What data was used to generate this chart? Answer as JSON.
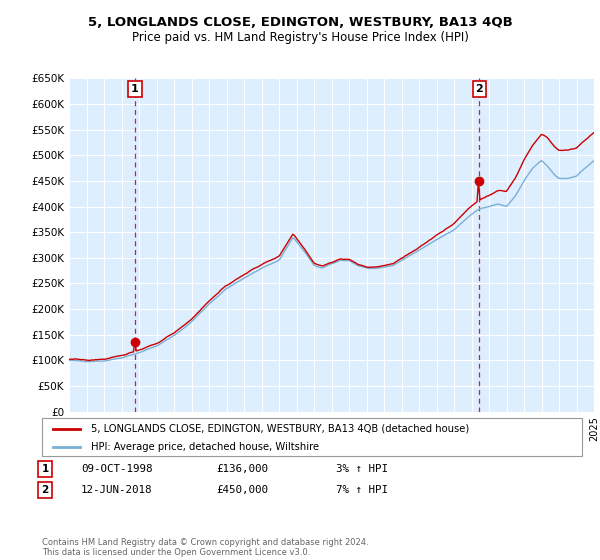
{
  "title": "5, LONGLANDS CLOSE, EDINGTON, WESTBURY, BA13 4QB",
  "subtitle": "Price paid vs. HM Land Registry's House Price Index (HPI)",
  "ylim": [
    0,
    650000
  ],
  "yticks": [
    0,
    50000,
    100000,
    150000,
    200000,
    250000,
    300000,
    350000,
    400000,
    450000,
    500000,
    550000,
    600000,
    650000
  ],
  "ytick_labels": [
    "£0",
    "£50K",
    "£100K",
    "£150K",
    "£200K",
    "£250K",
    "£300K",
    "£350K",
    "£400K",
    "£450K",
    "£500K",
    "£550K",
    "£600K",
    "£650K"
  ],
  "sale1_date": 1998.77,
  "sale1_price": 136000,
  "sale1_label": "1",
  "sale2_date": 2018.44,
  "sale2_price": 450000,
  "sale2_label": "2",
  "line_color_property": "#cc0000",
  "line_color_hpi": "#7ab0d4",
  "dashed_color": "#cc0000",
  "background_color": "#ffffff",
  "chart_bg": "#ddeeff",
  "grid_color": "#ffffff",
  "legend_label1": "5, LONGLANDS CLOSE, EDINGTON, WESTBURY, BA13 4QB (detached house)",
  "legend_label2": "HPI: Average price, detached house, Wiltshire",
  "table_row1": [
    "1",
    "09-OCT-1998",
    "£136,000",
    "3% ↑ HPI"
  ],
  "table_row2": [
    "2",
    "12-JUN-2018",
    "£450,000",
    "7% ↑ HPI"
  ],
  "footnote": "Contains HM Land Registry data © Crown copyright and database right 2024.\nThis data is licensed under the Open Government Licence v3.0.",
  "xmin": 1995,
  "xmax": 2025,
  "hpi_anchors_years": [
    1995.0,
    1996.0,
    1997.0,
    1998.0,
    1999.0,
    2000.0,
    2001.0,
    2002.0,
    2003.0,
    2004.0,
    2005.0,
    2006.0,
    2007.0,
    2007.8,
    2008.5,
    2009.0,
    2009.5,
    2010.0,
    2010.5,
    2011.0,
    2011.5,
    2012.0,
    2012.5,
    2013.0,
    2013.5,
    2014.0,
    2014.5,
    2015.0,
    2015.5,
    2016.0,
    2016.5,
    2017.0,
    2017.5,
    2018.0,
    2018.44,
    2019.0,
    2019.5,
    2020.0,
    2020.5,
    2021.0,
    2021.5,
    2022.0,
    2022.3,
    2022.8,
    2023.0,
    2023.5,
    2024.0,
    2024.5,
    2025.0
  ],
  "hpi_anchors_vals": [
    100000,
    98000,
    99000,
    105000,
    115000,
    128000,
    148000,
    175000,
    210000,
    240000,
    260000,
    280000,
    295000,
    340000,
    310000,
    285000,
    280000,
    288000,
    295000,
    295000,
    285000,
    280000,
    278000,
    282000,
    285000,
    295000,
    305000,
    315000,
    325000,
    335000,
    345000,
    355000,
    370000,
    385000,
    395000,
    400000,
    405000,
    400000,
    420000,
    450000,
    475000,
    490000,
    480000,
    460000,
    455000,
    455000,
    460000,
    475000,
    490000
  ],
  "prop_offset_anchors_years": [
    1995.0,
    1998.77,
    2002.0,
    2007.0,
    2008.5,
    2010.0,
    2012.0,
    2015.0,
    2018.44,
    2020.0,
    2021.5,
    2022.3,
    2023.0,
    2024.5,
    2025.0
  ],
  "prop_offset_vals": [
    2000,
    5000,
    5000,
    8000,
    5000,
    3000,
    2000,
    5000,
    18000,
    30000,
    45000,
    55000,
    55000,
    55000,
    55000
  ]
}
